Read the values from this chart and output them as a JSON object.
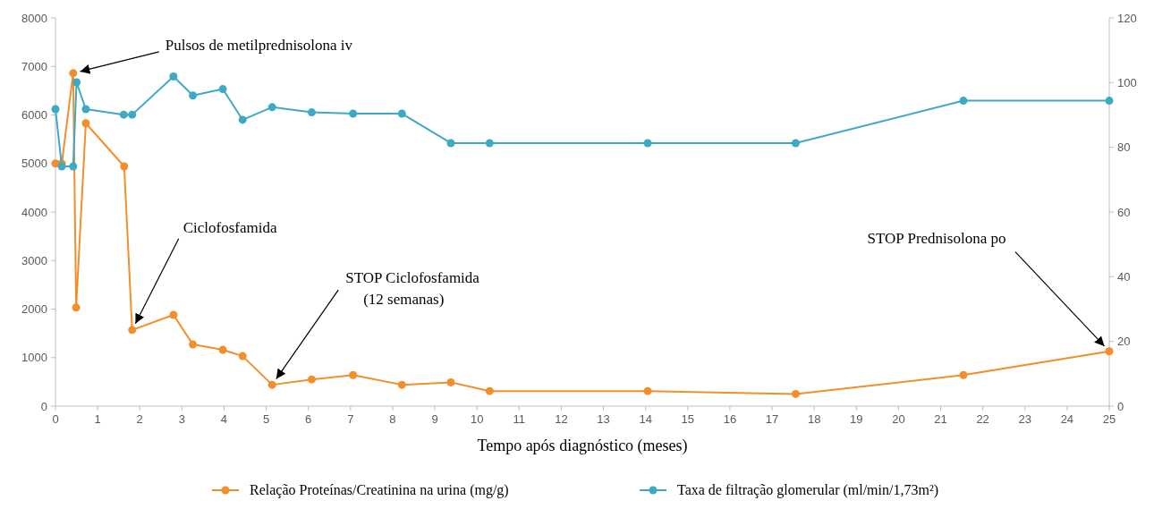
{
  "chart_data": {
    "type": "line",
    "xlabel": "Tempo após diagnóstico (meses)",
    "xlim": [
      0,
      25
    ],
    "xticks": [
      0,
      1,
      2,
      3,
      4,
      5,
      6,
      7,
      8,
      9,
      10,
      11,
      12,
      13,
      14,
      15,
      16,
      17,
      18,
      19,
      20,
      21,
      22,
      23,
      24,
      25
    ],
    "ylim": [
      0,
      8000
    ],
    "yticks": [
      0,
      1000,
      2000,
      3000,
      4000,
      5000,
      6000,
      7000,
      8000
    ],
    "y2lim": [
      0,
      120
    ],
    "y2ticks": [
      0,
      20,
      40,
      60,
      80,
      100,
      120
    ],
    "grid": false,
    "legend": "bottom",
    "marker": "circle",
    "line_style": "solid",
    "series": [
      {
        "name": "Relação Proteínas/Creatinina na urina (mg/g)",
        "color": "#f28e2b",
        "x": [
          0,
          0.15,
          0.42,
          0.49,
          0.72,
          1.63,
          1.82,
          2.8,
          3.26,
          3.97,
          4.44,
          5.14,
          6.08,
          7.06,
          8.22,
          9.38,
          10.3,
          14.05,
          17.56,
          21.54,
          25
        ],
        "values": [
          5000,
          5000,
          6860,
          2030,
          5830,
          4940,
          1570,
          1880,
          1270,
          1160,
          1030,
          440,
          550,
          640,
          440,
          490,
          310,
          310,
          250,
          640,
          1130
        ]
      },
      {
        "name": "Taxa de filtração glomerular (ml/min/1,73m²)",
        "color": "#3fa9c4",
        "axis": "y2",
        "x": [
          0,
          0.15,
          0.42,
          0.5,
          0.72,
          1.62,
          1.82,
          2.8,
          3.26,
          3.97,
          4.44,
          5.14,
          6.08,
          7.06,
          8.22,
          9.38,
          10.3,
          14.05,
          17.56,
          21.54,
          25
        ],
        "values": [
          91.8,
          74.1,
          74.1,
          100.1,
          91.8,
          90.1,
          90.1,
          101.9,
          96,
          98,
          88.5,
          92.4,
          90.8,
          90.4,
          90.4,
          81.3,
          81.3,
          81.3,
          81.3,
          94.4,
          94.4
        ]
      }
    ],
    "annotations": [
      {
        "text": "Pulsos de metilprednisolona iv",
        "x": 0.42,
        "y": 6860
      },
      {
        "text": "Ciclofosfamida",
        "x": 1.82,
        "y": 1570
      },
      {
        "text": "STOP Ciclofosfamida\n(12 semanas)",
        "x": 5.14,
        "y": 440
      },
      {
        "text": "STOP Prednisolona po",
        "x": 25,
        "y": 1130
      }
    ]
  }
}
